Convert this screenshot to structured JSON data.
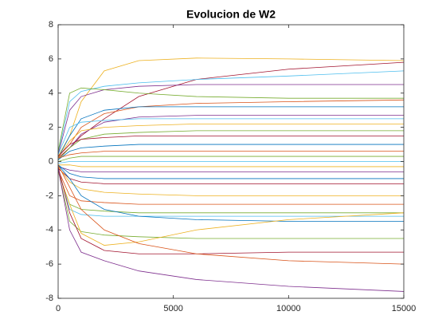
{
  "chart_data": {
    "type": "line",
    "title": "Evolucion de W2",
    "x": [
      0,
      500,
      1000,
      2000,
      3500,
      6000,
      10000,
      15000
    ],
    "xlim": [
      0,
      15000
    ],
    "xticks": [
      0,
      5000,
      10000,
      15000
    ],
    "ylim": [
      -8,
      8
    ],
    "yticks": [
      -8,
      -6,
      -4,
      -2,
      0,
      2,
      4,
      6,
      8
    ],
    "grid": false,
    "series": [
      {
        "color": "#EDB120",
        "values": [
          0.3,
          1.5,
          3.5,
          5.3,
          5.9,
          6.05,
          6.0,
          5.9
        ]
      },
      {
        "color": "#A2142F",
        "values": [
          0.2,
          0.8,
          1.5,
          2.5,
          3.8,
          4.8,
          5.4,
          5.8
        ]
      },
      {
        "color": "#4DBEEE",
        "values": [
          0.5,
          3.5,
          4.1,
          4.4,
          4.6,
          4.8,
          5.0,
          5.3
        ]
      },
      {
        "color": "#7E2F8E",
        "values": [
          0.4,
          3.0,
          3.8,
          4.2,
          4.4,
          4.5,
          4.5,
          4.5
        ]
      },
      {
        "color": "#77AC30",
        "values": [
          0.6,
          4.0,
          4.3,
          4.2,
          4.0,
          3.8,
          3.7,
          3.7
        ]
      },
      {
        "color": "#D95319",
        "values": [
          0.3,
          1.0,
          2.0,
          2.8,
          3.2,
          3.4,
          3.5,
          3.6
        ]
      },
      {
        "color": "#0072BD",
        "values": [
          0.2,
          1.5,
          2.5,
          3.0,
          3.2,
          3.2,
          3.2,
          3.2
        ]
      },
      {
        "color": "#7E2F8E",
        "values": [
          0.1,
          0.8,
          1.6,
          2.3,
          2.6,
          2.7,
          2.7,
          2.7
        ]
      },
      {
        "color": "#4DBEEE",
        "values": [
          0.4,
          2.0,
          2.3,
          2.4,
          2.5,
          2.5,
          2.5,
          2.5
        ]
      },
      {
        "color": "#EDB120",
        "values": [
          0.2,
          1.2,
          1.8,
          2.0,
          2.1,
          2.2,
          2.2,
          2.2
        ]
      },
      {
        "color": "#77AC30",
        "values": [
          0.1,
          0.8,
          1.3,
          1.6,
          1.7,
          1.8,
          1.8,
          1.8
        ]
      },
      {
        "color": "#A2142F",
        "values": [
          0.3,
          1.0,
          1.3,
          1.4,
          1.5,
          1.5,
          1.5,
          1.5
        ]
      },
      {
        "color": "#0072BD",
        "values": [
          0.1,
          0.6,
          0.8,
          0.9,
          1.0,
          1.0,
          1.0,
          1.0
        ]
      },
      {
        "color": "#D95319",
        "values": [
          0.2,
          0.4,
          0.5,
          0.6,
          0.6,
          0.6,
          0.6,
          0.6
        ]
      },
      {
        "color": "#77AC30",
        "values": [
          0.0,
          0.2,
          0.3,
          0.3,
          0.3,
          0.3,
          0.3,
          0.3
        ]
      },
      {
        "color": "#4DBEEE",
        "values": [
          -0.1,
          0,
          0,
          0,
          0,
          0,
          0,
          0
        ]
      },
      {
        "color": "#EDB120",
        "values": [
          -0.2,
          -0.2,
          -0.3,
          -0.3,
          -0.3,
          -0.3,
          -0.3,
          -0.3
        ]
      },
      {
        "color": "#7E2F8E",
        "values": [
          -0.3,
          -0.5,
          -0.6,
          -0.6,
          -0.6,
          -0.6,
          -0.6,
          -0.6
        ]
      },
      {
        "color": "#0072BD",
        "values": [
          -0.2,
          -0.7,
          -0.9,
          -1.0,
          -1.0,
          -1.0,
          -1.0,
          -1.0
        ]
      },
      {
        "color": "#A2142F",
        "values": [
          -0.4,
          -1.0,
          -1.2,
          -1.3,
          -1.3,
          -1.3,
          -1.3,
          -1.3
        ]
      },
      {
        "color": "#EDB120",
        "values": [
          -0.3,
          -1.2,
          -1.6,
          -1.8,
          -1.9,
          -2.0,
          -2.0,
          -2.0
        ]
      },
      {
        "color": "#D95319",
        "values": [
          -0.5,
          -2.0,
          -2.3,
          -2.4,
          -2.5,
          -2.5,
          -2.5,
          -2.5
        ]
      },
      {
        "color": "#77AC30",
        "values": [
          -0.6,
          -2.5,
          -2.8,
          -2.9,
          -3.0,
          -3.0,
          -3.0,
          -3.0
        ]
      },
      {
        "color": "#4DBEEE",
        "values": [
          -0.4,
          -2.8,
          -3.1,
          -3.2,
          -3.2,
          -3.2,
          -3.2,
          -3.2
        ]
      },
      {
        "color": "#0072BD",
        "values": [
          -0.2,
          -1.0,
          -2.0,
          -2.8,
          -3.2,
          -3.4,
          -3.5,
          -3.5
        ]
      },
      {
        "color": "#77AC30",
        "values": [
          -0.5,
          -3.5,
          -4.1,
          -4.3,
          -4.4,
          -4.5,
          -4.5,
          -4.5
        ]
      },
      {
        "color": "#EDB120",
        "values": [
          -0.6,
          -2.5,
          -4.2,
          -4.9,
          -4.7,
          -4.0,
          -3.4,
          -3.0
        ]
      },
      {
        "color": "#A2142F",
        "values": [
          -0.3,
          -3.0,
          -4.5,
          -5.2,
          -5.4,
          -5.4,
          -5.3,
          -5.3
        ]
      },
      {
        "color": "#D95319",
        "values": [
          -0.2,
          -1.5,
          -2.8,
          -4.0,
          -4.8,
          -5.4,
          -5.8,
          -6.0
        ]
      },
      {
        "color": "#7E2F8E",
        "values": [
          -0.4,
          -4.0,
          -5.3,
          -5.8,
          -6.4,
          -6.9,
          -7.3,
          -7.6
        ]
      }
    ]
  }
}
